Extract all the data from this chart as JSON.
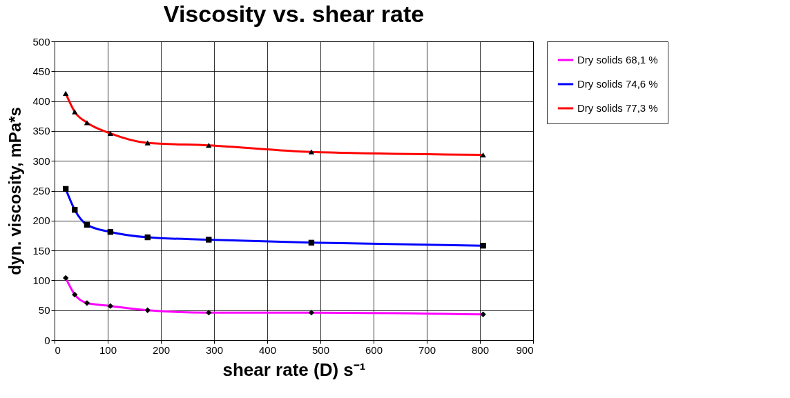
{
  "chart_data": {
    "type": "line",
    "title": "Viscosity vs. shear rate",
    "xlabel": "shear rate (D) s⁻¹",
    "ylabel": "dyn. viscosity, mPa*s",
    "x": [
      21,
      38,
      61,
      105,
      175,
      290,
      483,
      806
    ],
    "series": [
      {
        "name": "Dry solids 68,1 %",
        "color": "#ff00ff",
        "marker": "diamond",
        "values": [
          104,
          76,
          62,
          57,
          50,
          46,
          46,
          43
        ]
      },
      {
        "name": "Dry solids 74,6 %",
        "color": "#0000ff",
        "marker": "square",
        "values": [
          253,
          218,
          193,
          181,
          172,
          168,
          163,
          158
        ]
      },
      {
        "name": "Dry solids 77,3 %",
        "color": "#ff0000",
        "marker": "triangle",
        "values": [
          413,
          382,
          364,
          346,
          330,
          326,
          315,
          310
        ]
      }
    ],
    "xlim": [
      0,
      900
    ],
    "xticks": [
      0,
      100,
      200,
      300,
      400,
      500,
      600,
      700,
      800,
      900
    ],
    "ylim": [
      0,
      500
    ],
    "yticks": [
      0,
      50,
      100,
      150,
      200,
      250,
      300,
      350,
      400,
      450,
      500
    ],
    "grid": true,
    "legend": "right",
    "line_style": "solid"
  }
}
